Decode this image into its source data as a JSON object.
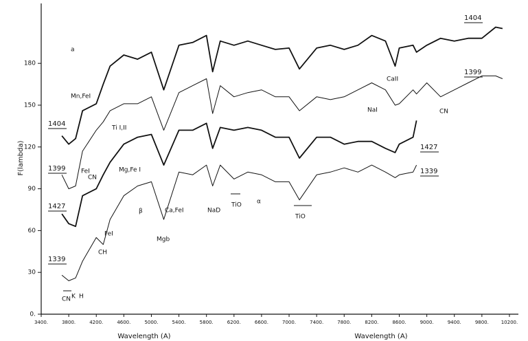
{
  "chart_data": {
    "type": "line",
    "y_label": "F(lambda)",
    "x_label": "Wavelength (A)",
    "xlim": [
      3400,
      10330
    ],
    "ylim": [
      0,
      223
    ],
    "xticks": [
      {
        "value": 3400,
        "label": "3400."
      },
      {
        "value": 3800,
        "label": "3800."
      },
      {
        "value": 4200,
        "label": "4200."
      },
      {
        "value": 4600,
        "label": "4600."
      },
      {
        "value": 5000,
        "label": "5000."
      },
      {
        "value": 5400,
        "label": "5400."
      },
      {
        "value": 5800,
        "label": "5800."
      },
      {
        "value": 6200,
        "label": "6200."
      },
      {
        "value": 6600,
        "label": "6600."
      },
      {
        "value": 7000,
        "label": "7000."
      },
      {
        "value": 7400,
        "label": "7400."
      },
      {
        "value": 7800,
        "label": "7800."
      },
      {
        "value": 8200,
        "label": "8200."
      },
      {
        "value": 8600,
        "label": "8600."
      },
      {
        "value": 9000,
        "label": "9000."
      },
      {
        "value": 9400,
        "label": "9400."
      },
      {
        "value": 9800,
        "label": "9800."
      },
      {
        "value": 10200,
        "label": "10200."
      }
    ],
    "yticks": [
      {
        "value": 0,
        "label": "0."
      },
      30,
      60,
      90,
      120,
      150,
      180
    ],
    "grid": false,
    "x": [
      3700,
      3800,
      3900,
      4000,
      4200,
      4300,
      4400,
      4600,
      4800,
      5000,
      5180,
      5400,
      5600,
      5800,
      5890,
      6000,
      6200,
      6400,
      6600,
      6800,
      7000,
      7150,
      7400,
      7600,
      7800,
      8000,
      8200,
      8400,
      8540,
      8600,
      8800,
      8850,
      9000,
      9200,
      9400,
      9600,
      9800,
      10000,
      10100
    ],
    "series": [
      {
        "name": "1404",
        "color": "#111111",
        "values": [
          128,
          122,
          126,
          146,
          151,
          165,
          178,
          186,
          183,
          188,
          161,
          193,
          195,
          200,
          174,
          196,
          193,
          196,
          193,
          190,
          191,
          176,
          191,
          193,
          190,
          193,
          200,
          196,
          178,
          191,
          193,
          188,
          193,
          198,
          196,
          198,
          198,
          206,
          205
        ]
      },
      {
        "name": "1399",
        "color": "#111111",
        "values": [
          100,
          90,
          92,
          117,
          132,
          138,
          146,
          151,
          151,
          156,
          132,
          159,
          164,
          169,
          144,
          164,
          156,
          159,
          161,
          156,
          156,
          146,
          156,
          154,
          156,
          161,
          166,
          161,
          150,
          151,
          161,
          158,
          166,
          156,
          161,
          166,
          171,
          171,
          169
        ]
      },
      {
        "name": "1427",
        "color": "#111111",
        "values": [
          72,
          65,
          63,
          85,
          90,
          100,
          109,
          122,
          127,
          129,
          107,
          132,
          132,
          137,
          119,
          134,
          132,
          134,
          132,
          127,
          127,
          112,
          127,
          127,
          122,
          124,
          124,
          119,
          116,
          122,
          127,
          139,
          null,
          null,
          null,
          null,
          null,
          null,
          null
        ]
      },
      {
        "name": "1339",
        "color": "#111111",
        "values": [
          28,
          24,
          26,
          38,
          55,
          50,
          68,
          85,
          92,
          95,
          68,
          102,
          100,
          107,
          92,
          107,
          97,
          102,
          100,
          95,
          95,
          82,
          100,
          102,
          105,
          102,
          107,
          102,
          98,
          100,
          102,
          107,
          null,
          null,
          null,
          null,
          null,
          null,
          null
        ]
      }
    ],
    "annotations": [
      "a",
      "Mn,FeI",
      "FeI",
      "CN",
      "Ti I,II",
      "Mg,Fe I",
      "CaII",
      "NaI",
      "CN",
      "TiO",
      "NaD",
      "α",
      "β",
      "Ca,FeI",
      "Mgb",
      "FeI",
      "CH",
      "TiO",
      "CN",
      "K",
      "H"
    ]
  }
}
